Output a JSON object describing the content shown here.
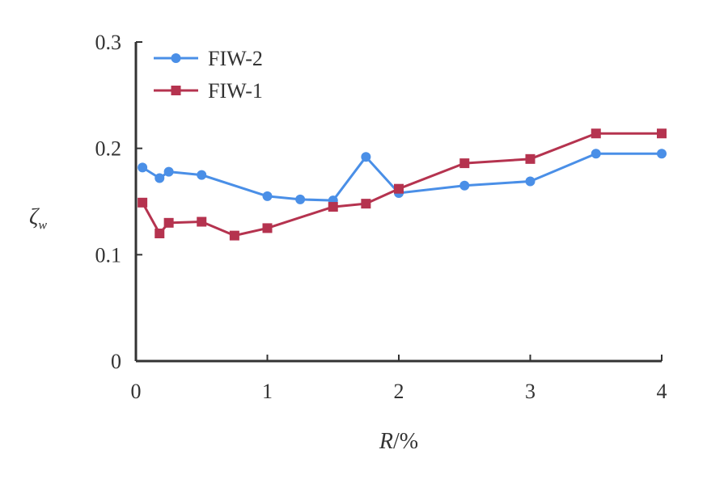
{
  "chart_data": {
    "type": "line",
    "xlabel": "R/%",
    "xlabel_main": "R",
    "xlabel_unit": "/%",
    "ylabel": "ζ",
    "ylabel_symbol": "ζ",
    "ylabel_sub": "w",
    "xlim": [
      0,
      4
    ],
    "ylim": [
      0,
      0.3
    ],
    "xticks": [
      0,
      1,
      2,
      3,
      4
    ],
    "xtick_labels": [
      "0",
      "1",
      "2",
      "3",
      "4"
    ],
    "yticks": [
      0,
      0.1,
      0.2,
      0.3
    ],
    "ytick_labels": [
      "0",
      "0.1",
      "0.2",
      "0.3"
    ],
    "grid": false,
    "legend_position": "top-left",
    "series": [
      {
        "name": "FIW-2",
        "color": "#4a8fe7",
        "marker": "circle",
        "x": [
          0.05,
          0.18,
          0.25,
          0.5,
          1.0,
          1.25,
          1.5,
          1.75,
          2.0,
          2.5,
          3.0,
          3.5,
          4.0
        ],
        "y": [
          0.182,
          0.172,
          0.178,
          0.175,
          0.155,
          0.152,
          0.151,
          0.192,
          0.158,
          0.165,
          0.169,
          0.195,
          0.195
        ]
      },
      {
        "name": "FIW-1",
        "color": "#b5334f",
        "marker": "square",
        "x": [
          0.05,
          0.18,
          0.25,
          0.5,
          0.75,
          1.0,
          1.5,
          1.75,
          2.0,
          2.5,
          3.0,
          3.5,
          4.0
        ],
        "y": [
          0.149,
          0.12,
          0.13,
          0.131,
          0.118,
          0.125,
          0.145,
          0.148,
          0.162,
          0.186,
          0.19,
          0.214,
          0.214
        ]
      }
    ]
  }
}
